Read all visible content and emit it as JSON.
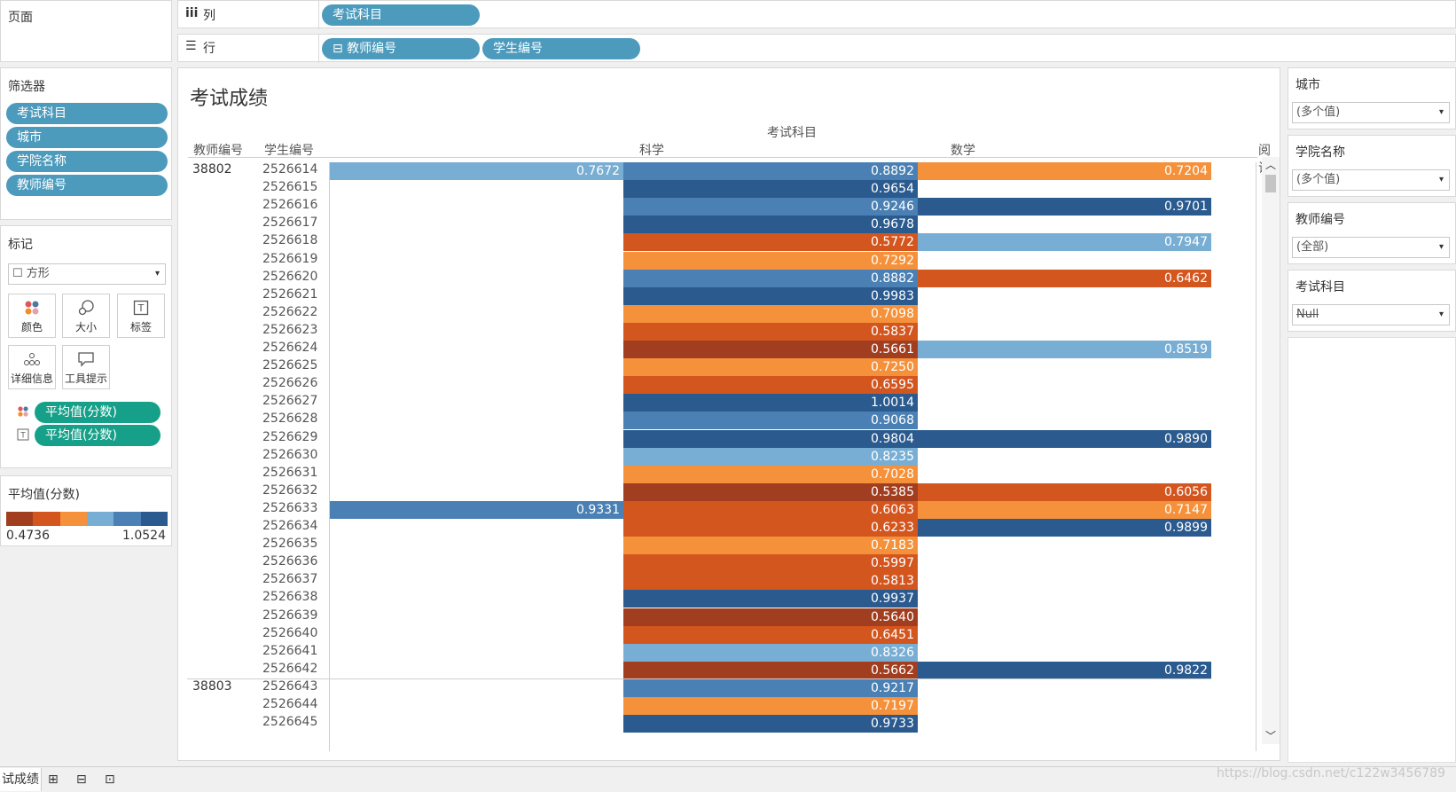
{
  "shelves": {
    "pages_label": "页面",
    "columns_icon": "iii",
    "columns_label": "列",
    "columns_pill": "考试科目",
    "rows_icon": "☰",
    "rows_label": "行",
    "rows_pills": [
      "⊟ 教师编号",
      "学生编号"
    ]
  },
  "filters_panel": {
    "title": "筛选器",
    "items": [
      "考试科目",
      "城市",
      "学院名称",
      "教师编号"
    ]
  },
  "marks_panel": {
    "title": "标记",
    "mark_type": "☐ 方形",
    "buttons": [
      {
        "icon": "color-icon",
        "label": "颜色"
      },
      {
        "icon": "size-icon",
        "label": "大小"
      },
      {
        "icon": "label-icon",
        "label": "标签"
      },
      {
        "icon": "detail-icon",
        "label": "详细信息"
      },
      {
        "icon": "tooltip-icon",
        "label": "工具提示"
      }
    ],
    "fields": [
      "平均值(分数)",
      "平均值(分数)"
    ]
  },
  "legend": {
    "title": "平均值(分数)",
    "min": "0.4736",
    "max": "1.0524",
    "colors": [
      "#a23e20",
      "#d4561f",
      "#f5913a",
      "#79aed4",
      "#4a80b3",
      "#2a5a8e"
    ]
  },
  "sheet": {
    "title": "考试成绩",
    "column_group_header": "考试科目",
    "row_headers": [
      "教师编号",
      "学生编号"
    ],
    "subjects": [
      "科学",
      "数学",
      "阅读"
    ]
  },
  "rows": [
    {
      "teacher": "38802",
      "student": "2526614",
      "science": "0.7672",
      "math": "0.8892",
      "reading": "0.7204"
    },
    {
      "teacher": "",
      "student": "2526615",
      "science": "",
      "math": "0.9654",
      "reading": ""
    },
    {
      "teacher": "",
      "student": "2526616",
      "science": "",
      "math": "0.9246",
      "reading": "0.9701"
    },
    {
      "teacher": "",
      "student": "2526617",
      "science": "",
      "math": "0.9678",
      "reading": ""
    },
    {
      "teacher": "",
      "student": "2526618",
      "science": "",
      "math": "0.5772",
      "reading": "0.7947"
    },
    {
      "teacher": "",
      "student": "2526619",
      "science": "",
      "math": "0.7292",
      "reading": ""
    },
    {
      "teacher": "",
      "student": "2526620",
      "science": "",
      "math": "0.8882",
      "reading": "0.6462"
    },
    {
      "teacher": "",
      "student": "2526621",
      "science": "",
      "math": "0.9983",
      "reading": ""
    },
    {
      "teacher": "",
      "student": "2526622",
      "science": "",
      "math": "0.7098",
      "reading": ""
    },
    {
      "teacher": "",
      "student": "2526623",
      "science": "",
      "math": "0.5837",
      "reading": ""
    },
    {
      "teacher": "",
      "student": "2526624",
      "science": "",
      "math": "0.5661",
      "reading": "0.8519"
    },
    {
      "teacher": "",
      "student": "2526625",
      "science": "",
      "math": "0.7250",
      "reading": ""
    },
    {
      "teacher": "",
      "student": "2526626",
      "science": "",
      "math": "0.6595",
      "reading": ""
    },
    {
      "teacher": "",
      "student": "2526627",
      "science": "",
      "math": "1.0014",
      "reading": ""
    },
    {
      "teacher": "",
      "student": "2526628",
      "science": "",
      "math": "0.9068",
      "reading": ""
    },
    {
      "teacher": "",
      "student": "2526629",
      "science": "",
      "math": "0.9804",
      "reading": "0.9890"
    },
    {
      "teacher": "",
      "student": "2526630",
      "science": "",
      "math": "0.8235",
      "reading": ""
    },
    {
      "teacher": "",
      "student": "2526631",
      "science": "",
      "math": "0.7028",
      "reading": ""
    },
    {
      "teacher": "",
      "student": "2526632",
      "science": "",
      "math": "0.5385",
      "reading": "0.6056"
    },
    {
      "teacher": "",
      "student": "2526633",
      "science": "0.9331",
      "math": "0.6063",
      "reading": "0.7147"
    },
    {
      "teacher": "",
      "student": "2526634",
      "science": "",
      "math": "0.6233",
      "reading": "0.9899"
    },
    {
      "teacher": "",
      "student": "2526635",
      "science": "",
      "math": "0.7183",
      "reading": ""
    },
    {
      "teacher": "",
      "student": "2526636",
      "science": "",
      "math": "0.5997",
      "reading": ""
    },
    {
      "teacher": "",
      "student": "2526637",
      "science": "",
      "math": "0.5813",
      "reading": ""
    },
    {
      "teacher": "",
      "student": "2526638",
      "science": "",
      "math": "0.9937",
      "reading": ""
    },
    {
      "teacher": "",
      "student": "2526639",
      "science": "",
      "math": "0.5640",
      "reading": ""
    },
    {
      "teacher": "",
      "student": "2526640",
      "science": "",
      "math": "0.6451",
      "reading": ""
    },
    {
      "teacher": "",
      "student": "2526641",
      "science": "",
      "math": "0.8326",
      "reading": ""
    },
    {
      "teacher": "",
      "student": "2526642",
      "science": "",
      "math": "0.5662",
      "reading": "0.9822"
    },
    {
      "teacher": "38803",
      "student": "2526643",
      "science": "",
      "math": "0.9217",
      "reading": ""
    },
    {
      "teacher": "",
      "student": "2526644",
      "science": "",
      "math": "0.7197",
      "reading": ""
    },
    {
      "teacher": "",
      "student": "2526645",
      "science": "",
      "math": "0.9733",
      "reading": ""
    }
  ],
  "right_filters": [
    {
      "title": "城市",
      "value": "(多个值)"
    },
    {
      "title": "学院名称",
      "value": "(多个值)"
    },
    {
      "title": "教师编号",
      "value": "(全部)"
    },
    {
      "title": "考试科目",
      "value": "Null"
    }
  ],
  "bottom_bar": {
    "sheet_tab": "试成绩",
    "new_sheet_icon": "new-worksheet-icon",
    "new_dashboard_icon": "new-dashboard-icon",
    "new_story_icon": "new-story-icon"
  },
  "watermark": "https://blog.csdn.net/c122w3456789"
}
